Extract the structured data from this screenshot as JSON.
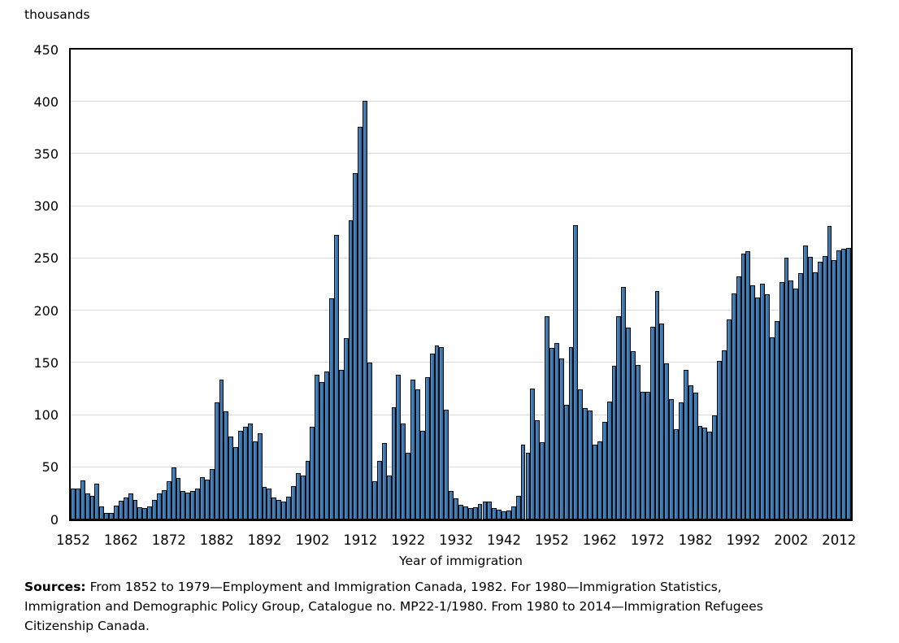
{
  "chart_data": {
    "type": "bar",
    "title": "",
    "y_axis_label": "thousands",
    "xlabel": "Year of immigration",
    "ylim": [
      0,
      450
    ],
    "y_ticks": [
      0,
      50,
      100,
      150,
      200,
      250,
      300,
      350,
      400,
      450
    ],
    "x_ticks": [
      1852,
      1862,
      1872,
      1882,
      1892,
      1902,
      1912,
      1922,
      1932,
      1942,
      1952,
      1962,
      1972,
      1982,
      1992,
      2002,
      2012
    ],
    "grid": true,
    "legend": "none",
    "year_start": 1852,
    "year_end": 2014,
    "bar_fill_color": "#3b78b4",
    "bar_border_color": "#0a0a0a",
    "gridline_color": "#d9d9d9",
    "axis_color": "#000000",
    "values": [
      29.3,
      29.5,
      37.3,
      25.3,
      22.9,
      33.9,
      12.3,
      6.3,
      6.3,
      13.6,
      18.3,
      21.0,
      24.8,
      19.0,
      11.4,
      10.7,
      12.8,
      18.6,
      24.7,
      27.8,
      36.6,
      50.1,
      39.4,
      27.4,
      25.6,
      27.1,
      29.8,
      40.5,
      38.5,
      48.0,
      112.5,
      133.6,
      103.8,
      79.2,
      69.2,
      84.5,
      88.8,
      91.6,
      75.1,
      82.2,
      31.0,
      29.6,
      20.8,
      18.8,
      16.8,
      21.7,
      31.9,
      44.5,
      41.7,
      55.7,
      89.1,
      138.7,
      131.3,
      141.5,
      211.7,
      272.4,
      143.3,
      173.7,
      286.8,
      331.3,
      375.8,
      400.9,
      150.5,
      36.7,
      55.9,
      72.9,
      41.8,
      107.7,
      138.8,
      91.7,
      64.2,
      133.7,
      124.2,
      84.9,
      136.0,
      158.9,
      166.8,
      165.0,
      104.8,
      27.5,
      20.6,
      14.4,
      12.5,
      11.3,
      11.6,
      15.1,
      17.2,
      17.0,
      11.3,
      9.3,
      7.6,
      8.5,
      12.8,
      22.7,
      71.7,
      64.1,
      125.4,
      95.2,
      73.9,
      194.4,
      164.5,
      168.9,
      154.2,
      109.9,
      164.9,
      282.2,
      124.9,
      106.9,
      104.1,
      71.7,
      74.6,
      93.2,
      112.6,
      146.8,
      194.7,
      222.9,
      184.0,
      161.5,
      147.7,
      121.9,
      122.0,
      184.2,
      218.5,
      187.9,
      149.4,
      114.9,
      86.3,
      112.1,
      143.1,
      128.6,
      121.2,
      89.2,
      88.3,
      84.3,
      99.4,
      152.1,
      161.6,
      191.6,
      216.5,
      232.8,
      254.8,
      256.7,
      224.4,
      212.9,
      226.1,
      216.0,
      174.2,
      190.0,
      227.5,
      250.6,
      229.0,
      221.3,
      235.8,
      262.2,
      251.6,
      236.8,
      247.2,
      252.2,
      280.7,
      248.7,
      257.9,
      259.0,
      260.4
    ]
  },
  "footer": {
    "sources_label": "Sources:",
    "sources_text": "From 1852 to 1979—Employment and Immigration Canada, 1982. For 1980—Immigration Statistics,\nImmigration and Demographic Policy Group, Catalogue no. MP22-1/1980. From 1980 to 2014—Immigration Refugees\nCitizenship Canada."
  }
}
